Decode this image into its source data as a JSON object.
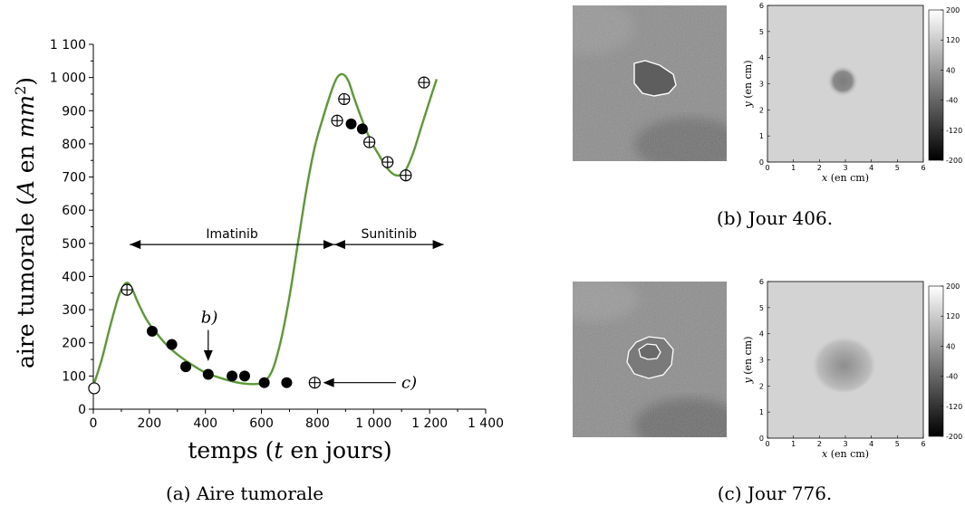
{
  "chart_data": [
    {
      "type": "scatter",
      "xlabel_prefix": "temps (",
      "xlabel_var": "t",
      "xlabel_suffix": " en jours)",
      "ylabel_prefix": "aire tumorale (",
      "ylabel_var": "A",
      "ylabel_mid": " en ",
      "ylabel_unit": "mm",
      "ylabel_exp": "2",
      "ylabel_suffix": ")",
      "xlim": [
        0,
        1400
      ],
      "ylim": [
        0,
        1100
      ],
      "x_ticks": [
        0,
        200,
        400,
        600,
        800,
        1000,
        1200,
        1400
      ],
      "x_tick_labels": [
        "0",
        "200",
        "400",
        "600",
        "800",
        "1 000",
        "1 200",
        "1 400"
      ],
      "y_ticks": [
        0,
        100,
        200,
        300,
        400,
        500,
        600,
        700,
        800,
        900,
        1000,
        1100
      ],
      "y_tick_labels": [
        "0",
        "100",
        "200",
        "300",
        "400",
        "500",
        "600",
        "700",
        "800",
        "900",
        "1 000",
        "1 100"
      ],
      "model_curve": {
        "color": "#5a9a32",
        "x": [
          0,
          30,
          60,
          90,
          110,
          125,
          140,
          160,
          190,
          220,
          260,
          300,
          350,
          400,
          450,
          500,
          540,
          580,
          610,
          640,
          670,
          700,
          730,
          760,
          790,
          820,
          850,
          870,
          890,
          910,
          930,
          960,
          990,
          1020,
          1050,
          1080,
          1110,
          1140,
          1170,
          1200,
          1225
        ],
        "y": [
          70,
          150,
          250,
          340,
          375,
          380,
          360,
          320,
          270,
          235,
          195,
          165,
          135,
          110,
          95,
          83,
          77,
          76,
          82,
          120,
          210,
          340,
          500,
          660,
          790,
          880,
          960,
          1000,
          1010,
          990,
          940,
          870,
          810,
          765,
          725,
          705,
          715,
          770,
          850,
          930,
          995
        ]
      },
      "filled_points": {
        "x": [
          210,
          280,
          330,
          410,
          495,
          540,
          610,
          690,
          920,
          960
        ],
        "y": [
          235,
          195,
          128,
          105,
          100,
          100,
          80,
          80,
          860,
          845
        ]
      },
      "crossed_points": {
        "x": [
          120,
          870,
          895,
          985,
          1050,
          1115,
          1180,
          790
        ],
        "y": [
          360,
          870,
          935,
          805,
          745,
          705,
          985,
          80
        ]
      },
      "open_points": {
        "x": [
          3
        ],
        "y": [
          63
        ]
      },
      "annotations": {
        "imatinib": {
          "label": "Imatinib",
          "x_start": 130,
          "x_end": 860,
          "y": 480
        },
        "sunitinib": {
          "label": "Sunitinib",
          "x_start": 860,
          "x_end": 1250,
          "y": 480
        },
        "b": {
          "label": "b)",
          "x": 410,
          "y_top": 315,
          "y_bottom": 145
        },
        "c": {
          "label": "c)",
          "x_text": 1110,
          "x_arrow_start": 1080,
          "x_arrow_end": 820,
          "y": 80
        }
      }
    },
    {
      "type": "heatmap",
      "panel": "b",
      "xlabel_var": "x",
      "xlabel_rest": " (en cm)",
      "ylabel_var": "y",
      "ylabel_rest": " (en cm)",
      "xlim": [
        0,
        6
      ],
      "ylim": [
        0,
        6
      ],
      "x_ticks": [
        "0",
        "1",
        "2",
        "3",
        "4",
        "5",
        "6"
      ],
      "y_ticks": [
        "0",
        "1",
        "2",
        "3",
        "4",
        "5",
        "6"
      ],
      "colorbar_ticks": [
        "200",
        "120",
        "40",
        "-40",
        "-120",
        "-200"
      ],
      "colorbar_range": [
        -200,
        200
      ],
      "blob": {
        "cx": 2.9,
        "cy": 3.1,
        "rx": 0.45,
        "ry": 0.45,
        "level": -60
      }
    },
    {
      "type": "heatmap",
      "panel": "c",
      "xlabel_var": "x",
      "xlabel_rest": " (en cm)",
      "ylabel_var": "y",
      "ylabel_rest": " (en cm)",
      "xlim": [
        0,
        6
      ],
      "ylim": [
        0,
        6
      ],
      "x_ticks": [
        "0",
        "1",
        "2",
        "3",
        "4",
        "5",
        "6"
      ],
      "y_ticks": [
        "0",
        "1",
        "2",
        "3",
        "4",
        "5",
        "6"
      ],
      "colorbar_ticks": [
        "200",
        "120",
        "40",
        "-40",
        "-120",
        "-200"
      ],
      "colorbar_range": [
        -200,
        200
      ],
      "blob": {
        "cx": 2.9,
        "cy": 2.9,
        "rx": 0.95,
        "ry": 0.85,
        "level": -30
      }
    }
  ],
  "captions": {
    "a": "(a) Aire tumorale",
    "b": "(b) Jour 406.",
    "c": "(c) Jour 776."
  }
}
